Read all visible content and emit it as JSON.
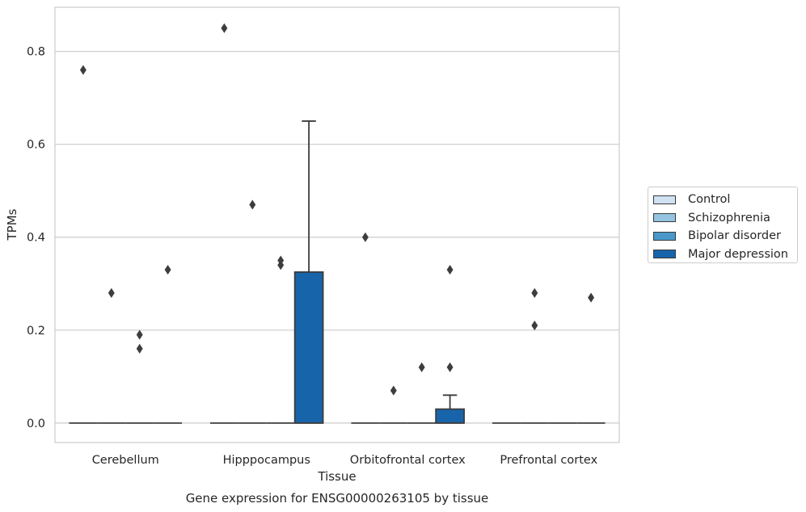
{
  "chart_data": {
    "type": "boxplot",
    "title": "Gene expression for ENSG00000263105 by tissue",
    "xlabel": "Tissue",
    "ylabel": "TPMs",
    "ylim": [
      -0.042,
      0.895
    ],
    "yticks": [
      0.0,
      0.2,
      0.4,
      0.6,
      0.8
    ],
    "ytick_labels": [
      "0.0",
      "0.2",
      "0.4",
      "0.6",
      "0.8"
    ],
    "grid": "horizontal",
    "legend_position": "right",
    "categories": [
      "Cerebellum",
      "Hipppocampus",
      "Orbitofrontal cortex",
      "Prefrontal cortex"
    ],
    "series": [
      {
        "name": "Control",
        "color": "#d0e1f2",
        "boxes": [
          {
            "q1": 0,
            "median": 0,
            "q3": 0,
            "whisker_low": 0,
            "whisker_high": 0,
            "outliers": [
              0.76
            ]
          },
          {
            "q1": 0,
            "median": 0,
            "q3": 0,
            "whisker_low": 0,
            "whisker_high": 0,
            "outliers": [
              0.85
            ]
          },
          {
            "q1": 0,
            "median": 0,
            "q3": 0,
            "whisker_low": 0,
            "whisker_high": 0,
            "outliers": [
              0.4
            ]
          },
          {
            "q1": 0,
            "median": 0,
            "q3": 0,
            "whisker_low": 0,
            "whisker_high": 0,
            "outliers": []
          }
        ]
      },
      {
        "name": "Schizophrenia",
        "color": "#94c4df",
        "boxes": [
          {
            "q1": 0,
            "median": 0,
            "q3": 0,
            "whisker_low": 0,
            "whisker_high": 0,
            "outliers": [
              0.28
            ]
          },
          {
            "q1": 0,
            "median": 0,
            "q3": 0,
            "whisker_low": 0,
            "whisker_high": 0,
            "outliers": [
              0.47
            ]
          },
          {
            "q1": 0,
            "median": 0,
            "q3": 0,
            "whisker_low": 0,
            "whisker_high": 0,
            "outliers": [
              0.07
            ]
          },
          {
            "q1": 0,
            "median": 0,
            "q3": 0,
            "whisker_low": 0,
            "whisker_high": 0,
            "outliers": [
              0.21,
              0.28
            ]
          }
        ]
      },
      {
        "name": "Bipolar disorder",
        "color": "#4a98c9",
        "boxes": [
          {
            "q1": 0,
            "median": 0,
            "q3": 0,
            "whisker_low": 0,
            "whisker_high": 0,
            "outliers": [
              0.16,
              0.19
            ]
          },
          {
            "q1": 0,
            "median": 0,
            "q3": 0,
            "whisker_low": 0,
            "whisker_high": 0,
            "outliers": [
              0.34,
              0.35
            ]
          },
          {
            "q1": 0,
            "median": 0,
            "q3": 0,
            "whisker_low": 0,
            "whisker_high": 0,
            "outliers": [
              0.12
            ]
          },
          {
            "q1": 0,
            "median": 0,
            "q3": 0,
            "whisker_low": 0,
            "whisker_high": 0,
            "outliers": []
          }
        ]
      },
      {
        "name": "Major depression",
        "color": "#1764ab",
        "boxes": [
          {
            "q1": 0,
            "median": 0,
            "q3": 0,
            "whisker_low": 0,
            "whisker_high": 0,
            "outliers": [
              0.33
            ]
          },
          {
            "q1": 0,
            "median": 0,
            "q3": 0.325,
            "whisker_low": 0,
            "whisker_high": 0.65,
            "outliers": []
          },
          {
            "q1": 0,
            "median": 0,
            "q3": 0.03,
            "whisker_low": 0,
            "whisker_high": 0.06,
            "outliers": [
              0.12,
              0.33
            ]
          },
          {
            "q1": 0,
            "median": 0,
            "q3": 0,
            "whisker_low": 0,
            "whisker_high": 0,
            "outliers": [
              0.27
            ]
          }
        ]
      }
    ]
  },
  "legend_swatch_colors": [
    "#d0e1f2",
    "#94c4df",
    "#4a98c9",
    "#1764ab"
  ]
}
